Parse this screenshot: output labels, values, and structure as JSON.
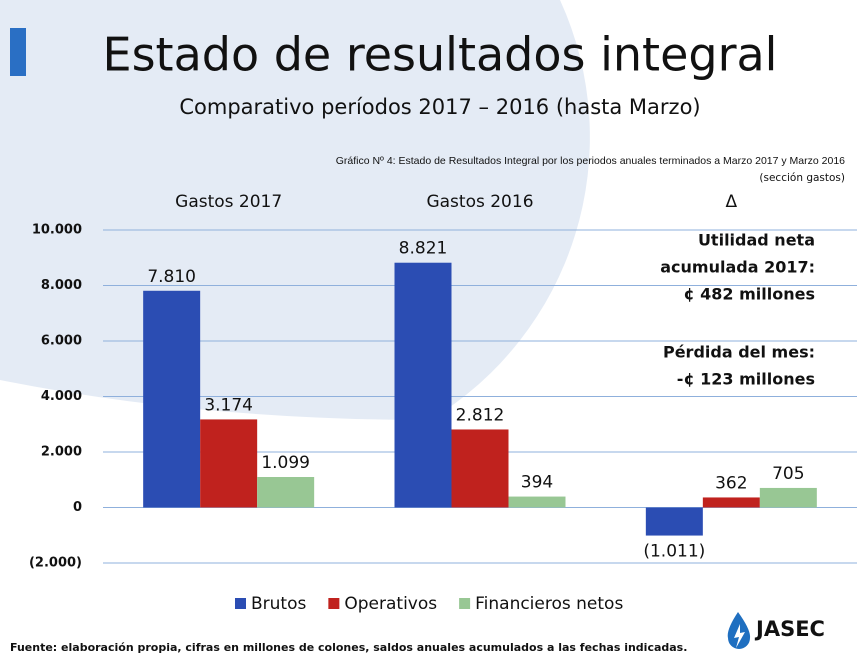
{
  "title": "Estado de resultados integral",
  "subtitle": "Comparativo períodos 2017 – 2016 (hasta Marzo)",
  "chart_data": {
    "type": "bar",
    "title": "Gráfico Nº 4: Estado de Resultados Integral por los periodos anuales terminados a Marzo 2017 y Marzo 2016",
    "subtitle": "(sección gastos)",
    "categories": [
      "Gastos 2017",
      "Gastos 2016",
      "Δ"
    ],
    "series": [
      {
        "name": "Brutos",
        "color": "#2b4db3",
        "values": [
          7810,
          8821,
          -1011
        ],
        "value_labels": [
          "7.810",
          "8.821",
          "(1.011)"
        ]
      },
      {
        "name": "Operativos",
        "color": "#c0221e",
        "values": [
          3174,
          2812,
          362
        ],
        "value_labels": [
          "3.174",
          "2.812",
          "362"
        ]
      },
      {
        "name": "Financieros netos",
        "color": "#98c794",
        "values": [
          1099,
          394,
          705
        ],
        "value_labels": [
          "1.099",
          "394",
          "705"
        ]
      }
    ],
    "ylim": [
      -2000,
      10000
    ],
    "yticks": [
      {
        "value": -2000,
        "label": "(2.000)"
      },
      0,
      {
        "value": 2000,
        "label": "2.000"
      },
      {
        "value": 4000,
        "label": "4.000"
      },
      {
        "value": 6000,
        "label": "6.000"
      },
      {
        "value": 8000,
        "label": "8.000"
      },
      {
        "value": 10000,
        "label": "10.000"
      }
    ],
    "grid": true,
    "legend": "bottom",
    "annotations": [
      "Utilidad neta",
      "acumulada 2017:",
      "¢ 482 millones",
      "Pérdida del mes:",
      "-¢ 123 millones"
    ]
  },
  "source": "Fuente: elaboración propia, cifras en millones de colones, saldos anuales acumulados a las fechas indicadas.",
  "logo": "JASEC"
}
